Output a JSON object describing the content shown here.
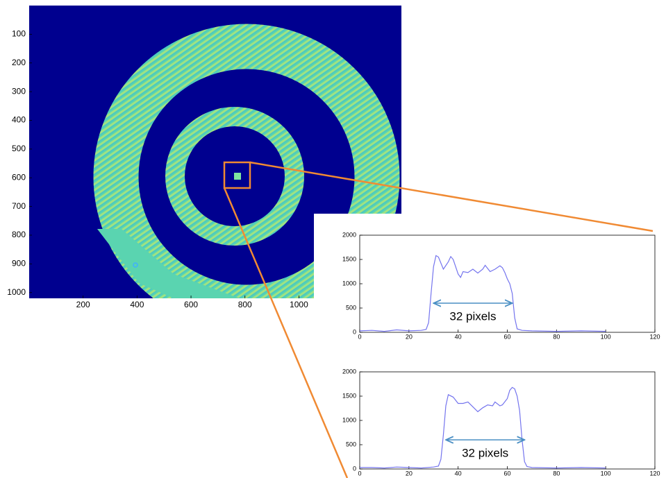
{
  "chart_data": [
    {
      "type": "image",
      "xlim": [
        0,
        1380
      ],
      "ylim": [
        0,
        1020
      ],
      "y_reversed": true,
      "xticks": [
        200,
        400,
        600,
        800,
        1000
      ],
      "yticks": [
        100,
        200,
        300,
        400,
        500,
        600,
        700,
        800,
        900,
        1000
      ]
    },
    {
      "type": "line",
      "xlim": [
        0,
        120
      ],
      "ylim": [
        0,
        2000
      ],
      "xticks": [
        0,
        20,
        40,
        60,
        80,
        100,
        120
      ],
      "yticks": [
        0,
        500,
        1000,
        1500,
        2000
      ],
      "series": [
        {
          "color": "#7474ee",
          "x": [
            0,
            5,
            10,
            15,
            20,
            25,
            27,
            28,
            29,
            30,
            31,
            32,
            34,
            36,
            37,
            38,
            40,
            41,
            42,
            44,
            46,
            48,
            50,
            51,
            53,
            55,
            57,
            58,
            59,
            60,
            61,
            62,
            63,
            64,
            66,
            70,
            80,
            90,
            100
          ],
          "values": [
            30,
            40,
            20,
            50,
            30,
            40,
            60,
            200,
            800,
            1350,
            1580,
            1550,
            1300,
            1450,
            1560,
            1500,
            1200,
            1130,
            1250,
            1230,
            1300,
            1220,
            1300,
            1380,
            1250,
            1300,
            1370,
            1330,
            1230,
            1100,
            1000,
            800,
            300,
            70,
            40,
            30,
            20,
            30,
            20
          ]
        }
      ],
      "annotations": [
        {
          "text": "32 pixels",
          "x": [
            30,
            62
          ],
          "y": 600
        }
      ]
    },
    {
      "type": "line",
      "xlim": [
        0,
        120
      ],
      "ylim": [
        0,
        2000
      ],
      "xticks": [
        0,
        20,
        40,
        60,
        80,
        100,
        120
      ],
      "yticks": [
        0,
        500,
        1000,
        1500,
        2000
      ],
      "series": [
        {
          "color": "#7474ee",
          "x": [
            0,
            5,
            10,
            15,
            20,
            25,
            30,
            32,
            33,
            34,
            35,
            36,
            38,
            40,
            42,
            44,
            46,
            48,
            50,
            52,
            54,
            55,
            57,
            58,
            60,
            61,
            62,
            63,
            64,
            65,
            66,
            67,
            68,
            70,
            80,
            90,
            100
          ],
          "values": [
            30,
            30,
            20,
            40,
            30,
            20,
            40,
            60,
            200,
            700,
            1300,
            1530,
            1480,
            1350,
            1350,
            1380,
            1280,
            1180,
            1260,
            1320,
            1300,
            1380,
            1300,
            1320,
            1450,
            1620,
            1680,
            1650,
            1500,
            1200,
            600,
            150,
            50,
            30,
            20,
            30,
            20
          ]
        }
      ],
      "annotations": [
        {
          "text": "32 pixels",
          "x": [
            35,
            67
          ],
          "y": 600
        }
      ]
    }
  ]
}
